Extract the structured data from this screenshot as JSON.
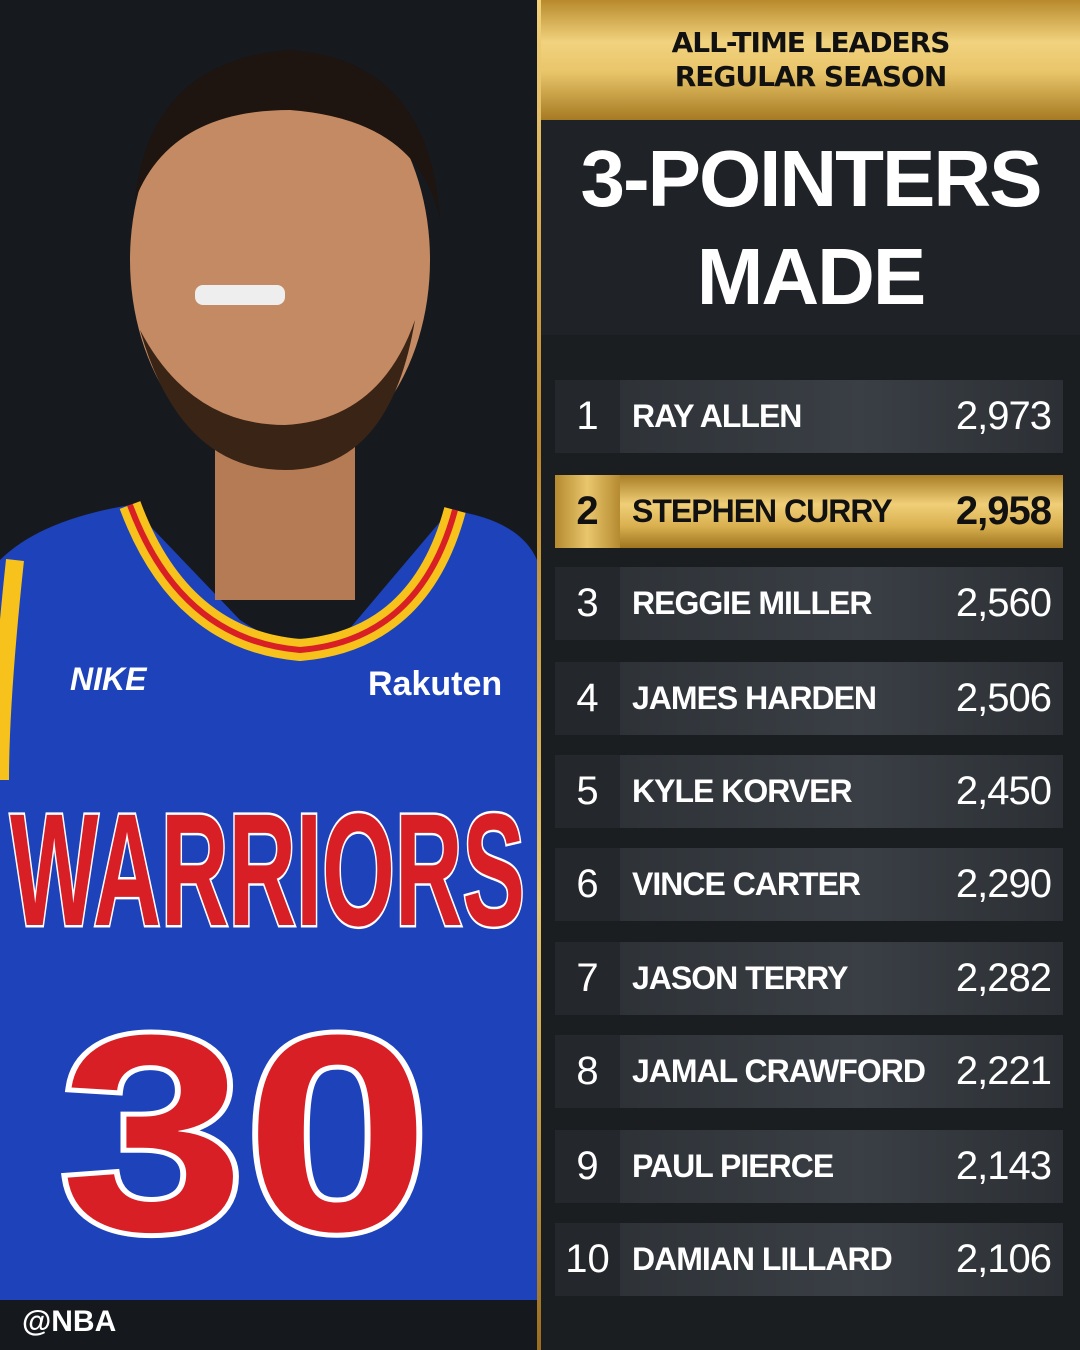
{
  "header": {
    "line1": "ALL-TIME LEADERS",
    "line2": "REGULAR SEASON"
  },
  "title": {
    "line1": "3-POINTERS",
    "line2": "MADE"
  },
  "leaders": [
    {
      "rank": "1",
      "name": "RAY ALLEN",
      "value": "2,973"
    },
    {
      "rank": "2",
      "name": "STEPHEN CURRY",
      "value": "2,958",
      "highlighted": true
    },
    {
      "rank": "3",
      "name": "REGGIE MILLER",
      "value": "2,560"
    },
    {
      "rank": "4",
      "name": "JAMES HARDEN",
      "value": "2,506"
    },
    {
      "rank": "5",
      "name": "KYLE KORVER",
      "value": "2,450"
    },
    {
      "rank": "6",
      "name": "VINCE CARTER",
      "value": "2,290"
    },
    {
      "rank": "7",
      "name": "JASON TERRY",
      "value": "2,282"
    },
    {
      "rank": "8",
      "name": "JAMAL CRAWFORD",
      "value": "2,221"
    },
    {
      "rank": "9",
      "name": "PAUL PIERCE",
      "value": "2,143"
    },
    {
      "rank": "10",
      "name": "DAMIAN LILLARD",
      "value": "2,106"
    }
  ],
  "photo": {
    "jersey_text": "WARRIORS",
    "jersey_number": "30",
    "brand": "NIKE",
    "sponsor": "Rakuten"
  },
  "handle": "@NBA",
  "colors": {
    "gold": "#e9c66a",
    "panel": "#1b1e21",
    "row": "#33383d",
    "jersey": "#1d42ba",
    "jersey_red": "#d81f26"
  }
}
